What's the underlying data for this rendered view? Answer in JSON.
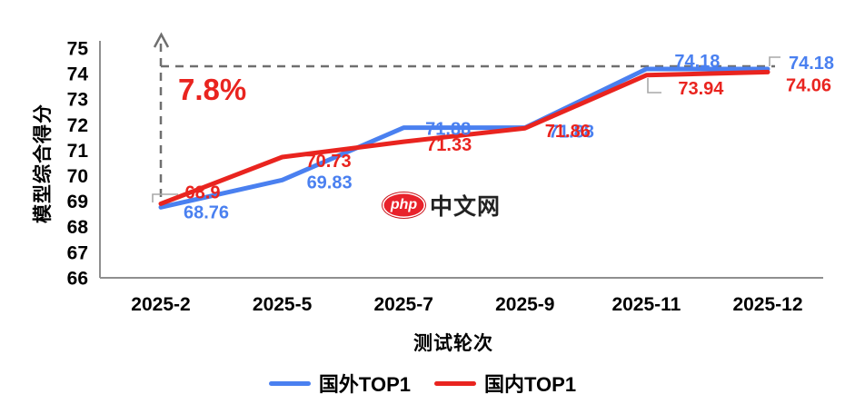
{
  "chart_data": {
    "type": "line",
    "categories": [
      "2025-2",
      "2025-5",
      "2025-7",
      "2025-9",
      "2025-11",
      "2025-12"
    ],
    "series": [
      {
        "name": "国外TOP1",
        "color": "#4a80f0",
        "values": [
          68.76,
          69.83,
          71.88,
          71.88,
          74.18,
          74.18
        ]
      },
      {
        "name": "国内TOP1",
        "color": "#e9241f",
        "values": [
          68.9,
          70.73,
          71.33,
          71.86,
          73.94,
          74.06
        ]
      }
    ],
    "title": "",
    "xlabel": "测试轮次",
    "ylabel": "模型综合得分",
    "ylim": [
      66,
      75
    ],
    "ytick_step": 1,
    "grid": false,
    "legend_position": "bottom",
    "annotation": "7.8%",
    "annotation_color": "#e9241f",
    "reference_level": 74.18
  },
  "watermark": {
    "logo": "php",
    "text": "中文网",
    "logo_color": "#e8222b"
  }
}
